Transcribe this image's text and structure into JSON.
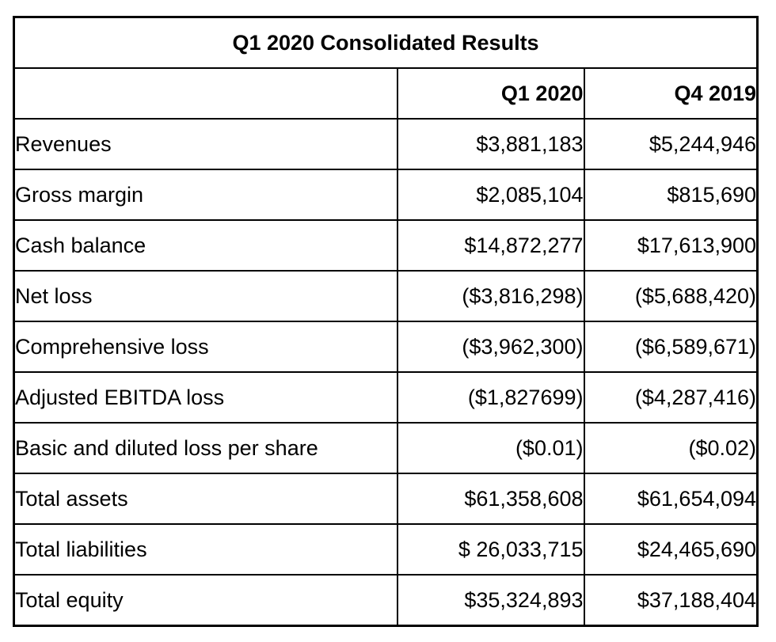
{
  "page": {
    "background_color": "#ffffff",
    "text_color": "#000000",
    "border_color": "#000000"
  },
  "table": {
    "title": "Q1 2020 Consolidated Results",
    "columns": {
      "label": "",
      "q1": "Q1 2020",
      "q4": "Q4 2019"
    },
    "rows": [
      {
        "label": "Revenues",
        "q1": "$3,881,183",
        "q4": "$5,244,946"
      },
      {
        "label": "Gross margin",
        "q1": "$2,085,104",
        "q4": "$815,690"
      },
      {
        "label": "Cash balance",
        "q1": "$14,872,277",
        "q4": "$17,613,900"
      },
      {
        "label": "Net loss",
        "q1": "($3,816,298)",
        "q4": "($5,688,420)"
      },
      {
        "label": "Comprehensive loss",
        "q1": "($3,962,300)",
        "q4": "($6,589,671)"
      },
      {
        "label": "Adjusted EBITDA loss",
        "q1": "($1,827699)",
        "q4": "($4,287,416)"
      },
      {
        "label": "Basic and diluted loss per share",
        "q1": "($0.01)",
        "q4": "($0.02)"
      },
      {
        "label": "Total assets",
        "q1": "$61,358,608",
        "q4": "$61,654,094"
      },
      {
        "label": "Total liabilities",
        "q1": "$ 26,033,715",
        "q4": "$24,465,690"
      },
      {
        "label": "Total equity",
        "q1": "$35,324,893",
        "q4": "$37,188,404"
      }
    ]
  }
}
